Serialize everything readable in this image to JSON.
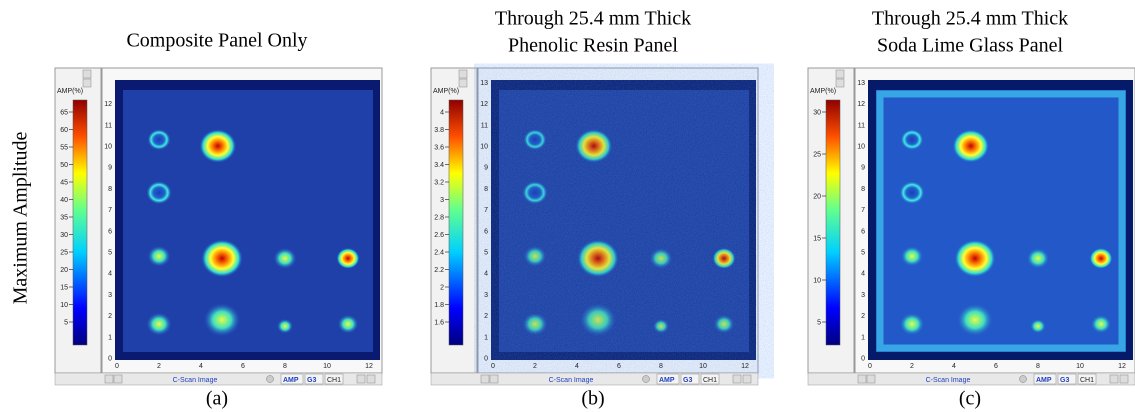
{
  "y_label": "Maximum Amplitude",
  "panels": [
    {
      "title": [
        "Composite Panel Only"
      ],
      "colorbar_label": "AMP(%)",
      "colorbar_ticks": [
        "65",
        "60",
        "55",
        "50",
        "45",
        "40",
        "35",
        "30",
        "25",
        "20",
        "15",
        "10",
        "5"
      ],
      "y_ticks": [
        "12",
        "11",
        "10",
        "9",
        "8",
        "7",
        "6",
        "5",
        "4",
        "3",
        "2",
        "1",
        "0"
      ],
      "x_ticks": [
        "0",
        "2",
        "4",
        "6",
        "8",
        "10",
        "12"
      ],
      "footer": "C-Scan Image",
      "buttons": [
        "AMP",
        "G3",
        "CH1"
      ],
      "caption": "(a)"
    },
    {
      "title": [
        "Through 25.4 mm Thick",
        "Phenolic Resin Panel"
      ],
      "colorbar_label": "AMP(%)",
      "colorbar_ticks": [
        "4",
        "3.8",
        "3.6",
        "3.4",
        "3.2",
        "3",
        "2.8",
        "2.6",
        "2.4",
        "2.2",
        "2",
        "1.8",
        "1.6"
      ],
      "y_ticks": [
        "13",
        "12",
        "11",
        "10",
        "9",
        "8",
        "7",
        "6",
        "5",
        "4",
        "3",
        "2",
        "1",
        "0"
      ],
      "x_ticks": [
        "0",
        "2",
        "4",
        "6",
        "8",
        "10",
        "12"
      ],
      "footer": "C-Scan Image",
      "buttons": [
        "AMP",
        "G3",
        "CH1"
      ],
      "caption": "(b)"
    },
    {
      "title": [
        "Through 25.4 mm Thick",
        "Soda Lime Glass Panel"
      ],
      "colorbar_label": "AMP(%)",
      "colorbar_ticks": [
        "30",
        "25",
        "20",
        "15",
        "10",
        "5"
      ],
      "y_ticks": [
        "13",
        "12",
        "11",
        "10",
        "9",
        "8",
        "7",
        "6",
        "5",
        "4",
        "3",
        "2",
        "1",
        "0"
      ],
      "x_ticks": [
        "0",
        "2",
        "4",
        "6",
        "8",
        "10",
        "12"
      ],
      "footer": "C-Scan Image",
      "buttons": [
        "AMP",
        "G3",
        "CH1"
      ],
      "caption": "(c)"
    }
  ]
}
